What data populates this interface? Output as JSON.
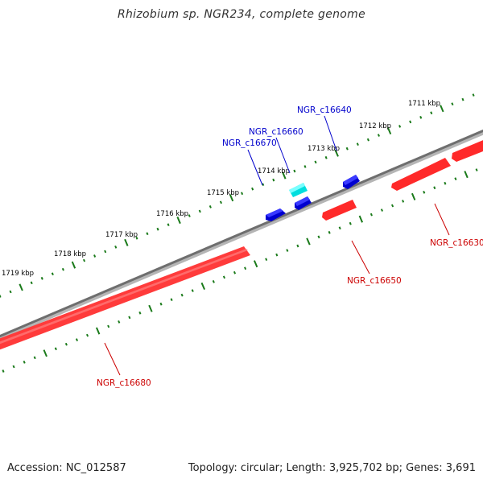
{
  "title": "Rhizobium sp. NGR234, complete genome",
  "footer": {
    "accession": "Accession: NC_012587",
    "summary": "Topology: circular; Length: 3,925,702 bp; Genes: 3,691"
  },
  "colors": {
    "backbone": "#7a7a7a",
    "forward_gene": "#ee0000",
    "reverse_gene": "#0000cc",
    "selected_gene": "#00d8d8",
    "forward_label": "#cc0000",
    "reverse_label": "#0000cc",
    "tick": "#1a7a1a",
    "tick_label": "#000000"
  },
  "scale": {
    "unit": "kbp",
    "labels": [
      "1711 kbp",
      "1712 kbp",
      "1713 kbp",
      "1714 kbp",
      "1715 kbp",
      "1716 kbp",
      "1717 kbp",
      "1718 kbp",
      "1719 kbp"
    ]
  },
  "genes": [
    {
      "id": "NGR_c16630",
      "strand": "forward",
      "label": "NGR_c16630"
    },
    {
      "id": "NGR_c16640",
      "strand": "reverse",
      "label": "NGR_c16640"
    },
    {
      "id": "NGR_c16650",
      "strand": "forward",
      "label": "NGR_c16650"
    },
    {
      "id": "NGR_c16660",
      "strand": "reverse",
      "label": "NGR_c16660",
      "selected": true
    },
    {
      "id": "NGR_c16670",
      "strand": "reverse",
      "label": "NGR_c16670"
    },
    {
      "id": "NGR_c16680",
      "strand": "forward",
      "label": "NGR_c16680"
    }
  ]
}
